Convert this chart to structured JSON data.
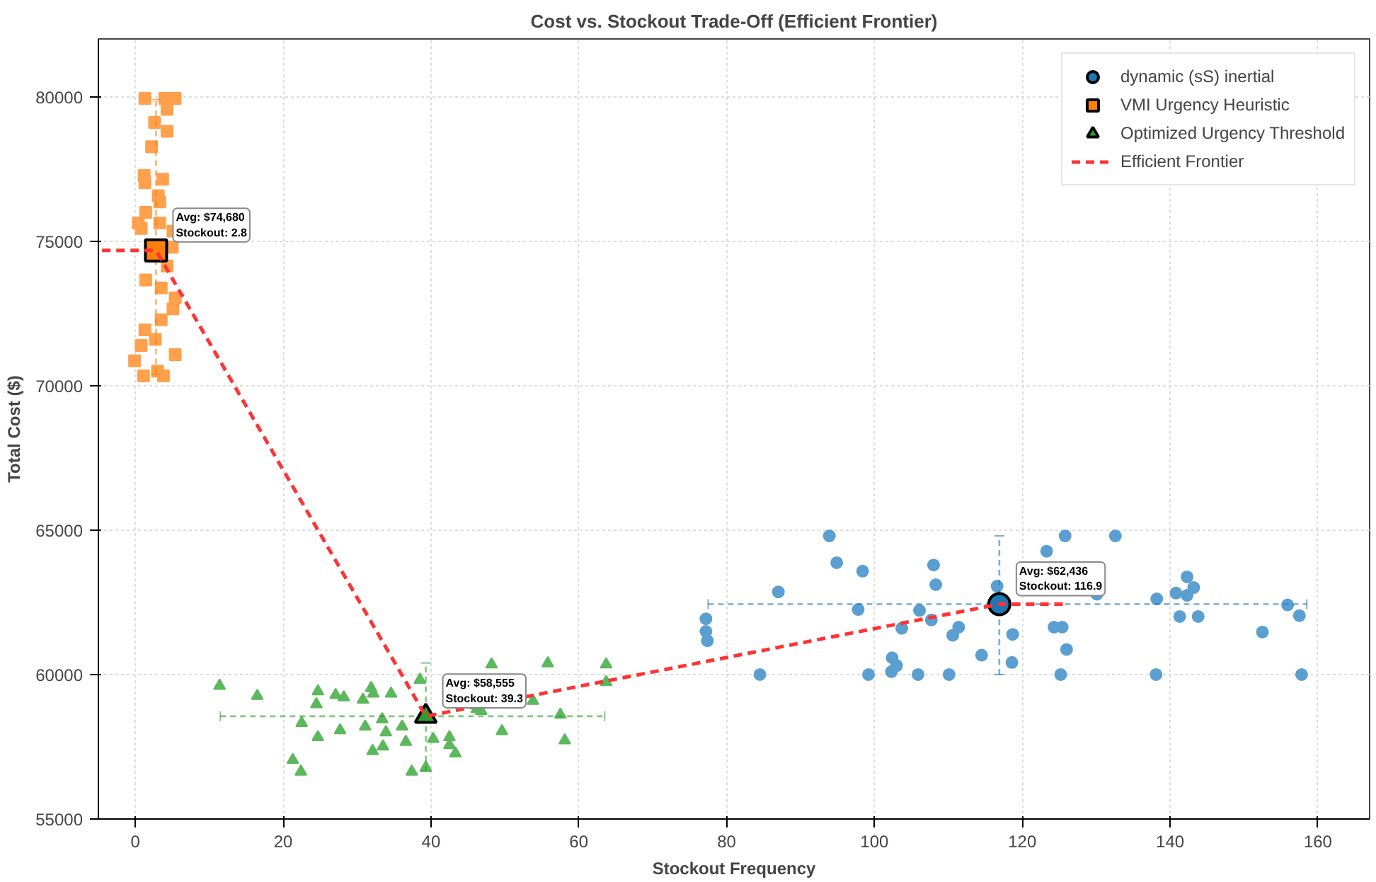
{
  "chart_data": {
    "type": "scatter",
    "title": "Cost vs. Stockout Trade-Off (Efficient Frontier)",
    "xlabel": "Stockout Frequency",
    "ylabel": "Total Cost ($)",
    "xlim": [
      -5,
      167
    ],
    "ylim": [
      55000,
      82000
    ],
    "xticks": [
      0,
      20,
      40,
      60,
      80,
      100,
      120,
      140,
      160
    ],
    "yticks": [
      55000,
      60000,
      65000,
      70000,
      75000,
      80000
    ],
    "grid": true,
    "legend": "top right",
    "series": [
      {
        "marker": "circle",
        "color": "#5b9fd1",
        "x": [
          93.9,
          94.9,
          98.4,
          87.0,
          97.8,
          77.2,
          77.2,
          77.4,
          84.5,
          99.2,
          102.4,
          102.3,
          103.0,
          103.7,
          105.9,
          106.1,
          107.7,
          108.0,
          108.3,
          110.1,
          110.6,
          111.4,
          114.5,
          116.6,
          118.7,
          118.6,
          123.3,
          125.8,
          132.6,
          130.1,
          124.3,
          125.4,
          126.0,
          125.2,
          138.2,
          138.1,
          140.8,
          141.3,
          142.3,
          142.3,
          143.2,
          143.8,
          152.5,
          155.9,
          157.5,
          157.8
        ],
        "values": [
          64800,
          63870,
          63580,
          62860,
          62250,
          61930,
          61490,
          61170,
          60000,
          60000,
          60580,
          60100,
          60310,
          61600,
          60000,
          62220,
          61890,
          63790,
          63110,
          60000,
          61360,
          61640,
          60670,
          63060,
          61390,
          60420,
          64270,
          64800,
          64800,
          62780,
          61640,
          61640,
          60870,
          60000,
          62620,
          60000,
          62820,
          62010,
          62740,
          63380,
          63010,
          62010,
          61470,
          62410,
          62040,
          60000
        ]
      },
      {
        "marker": "square",
        "color": "#ffa04d",
        "x": [
          1.3,
          4.0,
          5.4,
          4.3,
          2.6,
          4.3,
          2.2,
          1.2,
          3.7,
          1.3,
          3.1,
          3.3,
          1.4,
          0.4,
          3.3,
          0.8,
          5.1,
          5.0,
          4.3,
          1.4,
          3.5,
          5.4,
          5.1,
          3.5,
          1.3,
          2.7,
          0.8,
          5.4,
          -0.1,
          3.0,
          3.8,
          1.1
        ],
        "values": [
          79940,
          79940,
          79940,
          79560,
          79110,
          78800,
          78270,
          77270,
          77140,
          77020,
          76570,
          76360,
          76000,
          75630,
          75630,
          75440,
          75350,
          74790,
          74140,
          73660,
          73380,
          73040,
          72660,
          72280,
          71930,
          71600,
          71390,
          71070,
          70860,
          70500,
          70340,
          70340
        ]
      },
      {
        "marker": "triangle",
        "color": "#5cb85c",
        "x": [
          11.4,
          16.5,
          24.7,
          24.5,
          27.1,
          28.2,
          30.8,
          31.9,
          32.2,
          34.6,
          22.5,
          24.7,
          27.7,
          31.1,
          33.4,
          33.9,
          36.1,
          36.6,
          33.5,
          32.1,
          21.3,
          22.4,
          37.4,
          39.3,
          38.5,
          40.3,
          42.5,
          42.5,
          43.3,
          49.6,
          48.2,
          55.8,
          63.7,
          63.7,
          46.2,
          46.8,
          53.8,
          57.5,
          58.1
        ],
        "values": [
          59610,
          59260,
          59420,
          58970,
          59290,
          59210,
          59130,
          59530,
          59340,
          59340,
          58320,
          57830,
          58070,
          58200,
          58450,
          58000,
          58200,
          57670,
          57510,
          57350,
          57040,
          56640,
          56640,
          56780,
          59820,
          57770,
          57830,
          57560,
          57270,
          58040,
          60350,
          60390,
          60350,
          59740,
          58800,
          58740,
          59090,
          58610,
          57720
        ]
      },
      {
        "marker": "circle",
        "name": "dynamic (sS) inertial",
        "color": "#1f77b4",
        "x": [
          116.9
        ],
        "values": [
          62436
        ],
        "errors": [
          [
            60000,
            64800
          ]
        ],
        "xerrors": [
          [
            77.5,
            158.5
          ]
        ]
      },
      {
        "marker": "square",
        "name": "VMI Urgency Heuristic",
        "color": "#ff7f0e",
        "x": [
          2.8
        ],
        "values": [
          74680
        ],
        "errors": [
          [
            70400,
            79900
          ]
        ],
        "xerrors": [
          [
            1.3,
            4.3
          ]
        ]
      },
      {
        "marker": "triangle",
        "name": "Optimized Urgency Threshold",
        "color": "#2ca02c",
        "x": [
          39.3
        ],
        "values": [
          58555
        ],
        "errors": [
          [
            56650,
            60400
          ]
        ],
        "xerrors": [
          [
            11.5,
            63.5
          ]
        ]
      },
      {
        "type": "line",
        "name": "Efficient Frontier",
        "color": "#ff3333",
        "line_style": "dashed",
        "x": [
          -4.5,
          2.8,
          39.3,
          116.9,
          126
        ],
        "values": [
          74680,
          74680,
          58555,
          62436,
          62436
        ]
      }
    ],
    "annotations": [
      {
        "text": "Avg: $74,680\nStockout: 2.8",
        "x": 2.8,
        "y": 74680
      },
      {
        "text": "Avg: $58,555\nStockout: 39.3",
        "x": 39.3,
        "y": 58555
      },
      {
        "text": "Avg: $62,436\nStockout: 116.9",
        "x": 116.9,
        "y": 62436
      }
    ]
  }
}
